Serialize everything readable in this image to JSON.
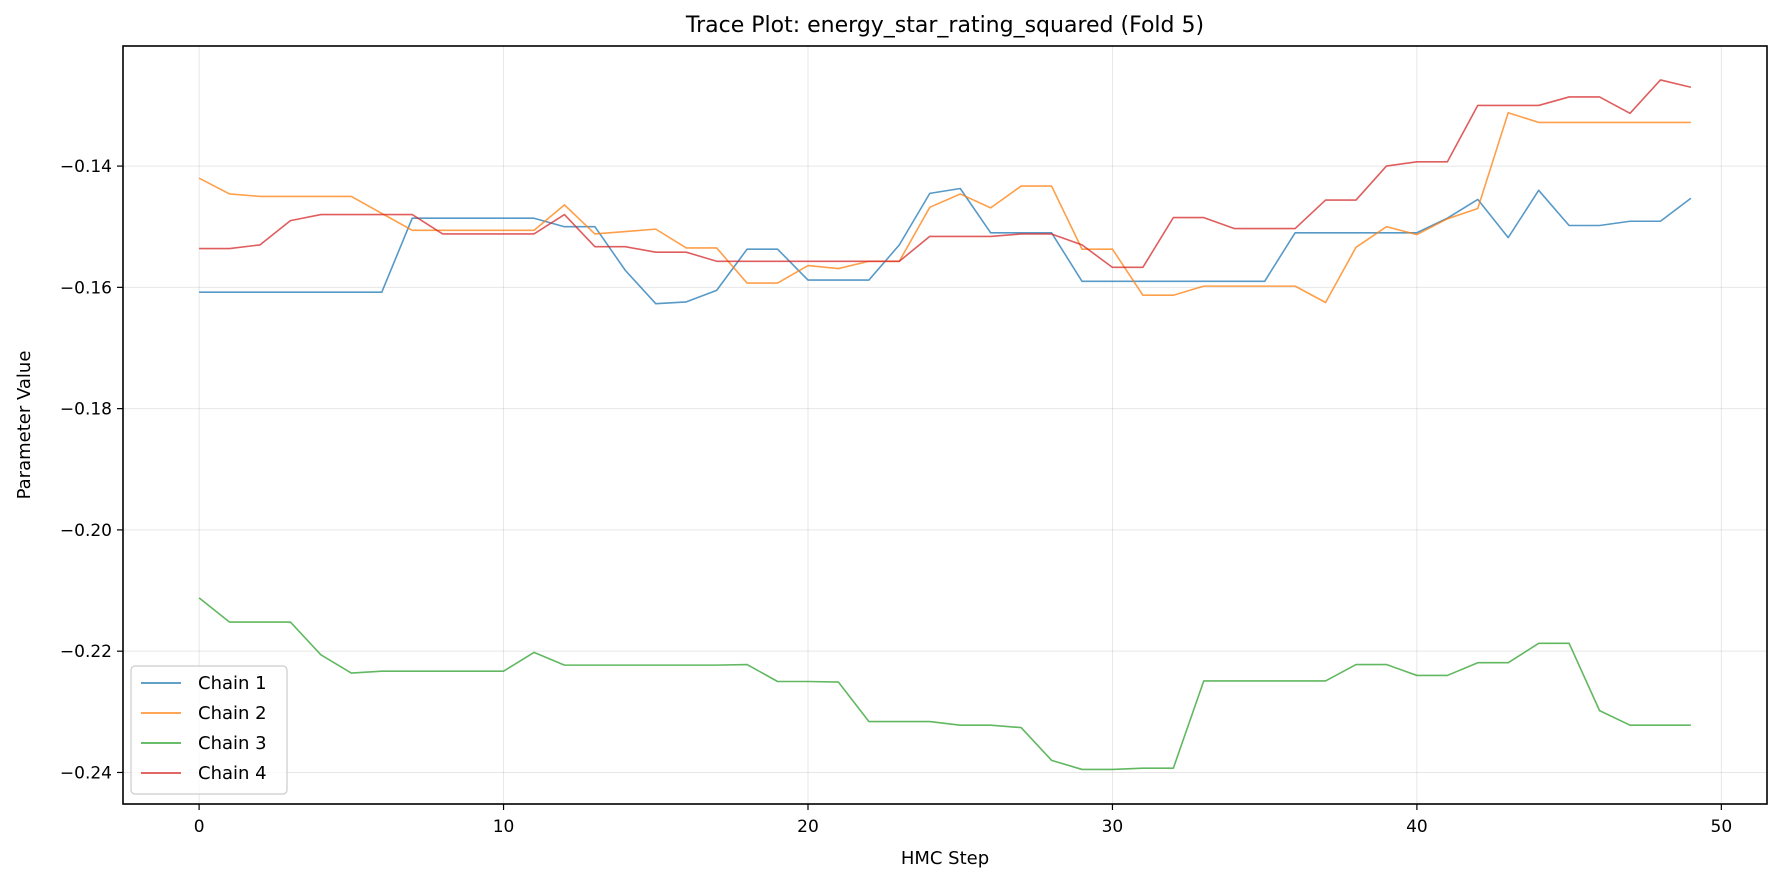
{
  "chart_data": {
    "type": "line",
    "title": "Trace Plot: energy_star_rating_squared (Fold 5)",
    "xlabel": "HMC Step",
    "ylabel": "Parameter Value",
    "xlim": [
      -2.5,
      51.5
    ],
    "ylim": [
      -0.2452,
      -0.1202
    ],
    "xticks": [
      0,
      10,
      20,
      30,
      40,
      50
    ],
    "xtick_labels": [
      "0",
      "10",
      "20",
      "30",
      "40",
      "50"
    ],
    "yticks": [
      -0.14,
      -0.16,
      -0.18,
      -0.2,
      -0.22,
      -0.24
    ],
    "ytick_labels": [
      "−0.14",
      "−0.16",
      "−0.18",
      "−0.20",
      "−0.22",
      "−0.24"
    ],
    "grid": true,
    "legend_position": "lower-left",
    "x": [
      0,
      1,
      2,
      3,
      4,
      5,
      6,
      7,
      8,
      9,
      10,
      11,
      12,
      13,
      14,
      15,
      16,
      17,
      18,
      19,
      20,
      21,
      22,
      23,
      24,
      25,
      26,
      27,
      28,
      29,
      30,
      31,
      32,
      33,
      34,
      35,
      36,
      37,
      38,
      39,
      40,
      41,
      42,
      43,
      44,
      45,
      46,
      47,
      48,
      49
    ],
    "series": [
      {
        "name": "Chain 1",
        "color": "#1f77b4",
        "values": [
          -0.1608,
          -0.1608,
          -0.1608,
          -0.1608,
          -0.1608,
          -0.1608,
          -0.1608,
          -0.1486,
          -0.1486,
          -0.1486,
          -0.1486,
          -0.1486,
          -0.15,
          -0.15,
          -0.1572,
          -0.1627,
          -0.1624,
          -0.1605,
          -0.1537,
          -0.1537,
          -0.1588,
          -0.1588,
          -0.1588,
          -0.153,
          -0.1445,
          -0.1437,
          -0.151,
          -0.151,
          -0.151,
          -0.159,
          -0.159,
          -0.159,
          -0.159,
          -0.159,
          -0.159,
          -0.159,
          -0.151,
          -0.151,
          -0.151,
          -0.151,
          -0.151,
          -0.1486,
          -0.1455,
          -0.1518,
          -0.144,
          -0.1498,
          -0.1498,
          -0.1491,
          -0.1491,
          -0.1453
        ]
      },
      {
        "name": "Chain 2",
        "color": "#ff7f0e",
        "values": [
          -0.142,
          -0.1446,
          -0.145,
          -0.145,
          -0.145,
          -0.145,
          -0.1478,
          -0.1506,
          -0.1506,
          -0.1506,
          -0.1506,
          -0.1506,
          -0.1464,
          -0.1512,
          -0.1508,
          -0.1504,
          -0.1535,
          -0.1535,
          -0.1593,
          -0.1593,
          -0.1564,
          -0.1569,
          -0.1557,
          -0.1557,
          -0.1468,
          -0.1446,
          -0.1469,
          -0.1433,
          -0.1433,
          -0.1537,
          -0.1537,
          -0.1613,
          -0.1613,
          -0.1598,
          -0.1598,
          -0.1598,
          -0.1598,
          -0.1625,
          -0.1534,
          -0.15,
          -0.1513,
          -0.1487,
          -0.147,
          -0.1312,
          -0.1328,
          -0.1328,
          -0.1328,
          -0.1328,
          -0.1328,
          -0.1328
        ]
      },
      {
        "name": "Chain 3",
        "color": "#2ca02c",
        "values": [
          -0.2112,
          -0.2152,
          -0.2152,
          -0.2152,
          -0.2206,
          -0.2236,
          -0.2233,
          -0.2233,
          -0.2233,
          -0.2233,
          -0.2233,
          -0.2202,
          -0.2223,
          -0.2223,
          -0.2223,
          -0.2223,
          -0.2223,
          -0.2223,
          -0.2222,
          -0.225,
          -0.225,
          -0.2251,
          -0.2316,
          -0.2316,
          -0.2316,
          -0.2322,
          -0.2322,
          -0.2326,
          -0.238,
          -0.2395,
          -0.2395,
          -0.2393,
          -0.2393,
          -0.2249,
          -0.2249,
          -0.2249,
          -0.2249,
          -0.2249,
          -0.2222,
          -0.2222,
          -0.224,
          -0.224,
          -0.2219,
          -0.2219,
          -0.2187,
          -0.2187,
          -0.2298,
          -0.2322,
          -0.2322,
          -0.2322
        ]
      },
      {
        "name": "Chain 4",
        "color": "#d62728",
        "values": [
          -0.1536,
          -0.1536,
          -0.153,
          -0.149,
          -0.148,
          -0.148,
          -0.148,
          -0.148,
          -0.1512,
          -0.1512,
          -0.1512,
          -0.1512,
          -0.148,
          -0.1533,
          -0.1533,
          -0.1542,
          -0.1542,
          -0.1557,
          -0.1557,
          -0.1557,
          -0.1557,
          -0.1557,
          -0.1557,
          -0.1557,
          -0.1516,
          -0.1516,
          -0.1516,
          -0.1512,
          -0.1512,
          -0.153,
          -0.1567,
          -0.1567,
          -0.1485,
          -0.1485,
          -0.1503,
          -0.1503,
          -0.1503,
          -0.1456,
          -0.1456,
          -0.14,
          -0.1393,
          -0.1393,
          -0.13,
          -0.13,
          -0.13,
          -0.1286,
          -0.1286,
          -0.1313,
          -0.1258,
          -0.127
        ]
      }
    ]
  }
}
